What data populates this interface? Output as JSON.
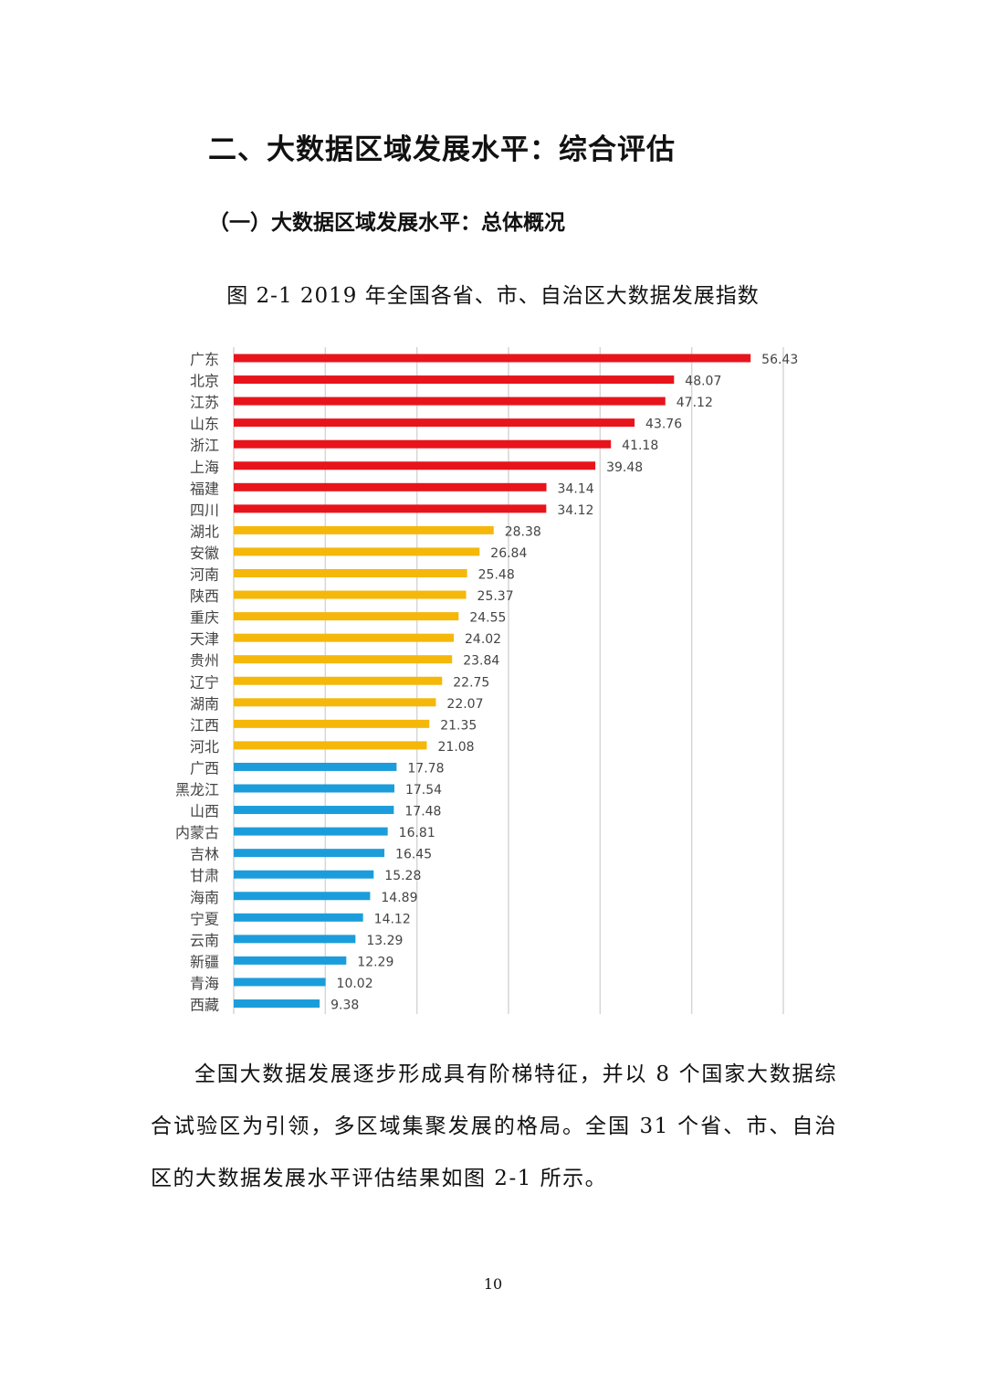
{
  "heading": "二、大数据区域发展水平：综合评估",
  "subheading": "（一）大数据区域发展水平：总体概况",
  "caption": "图 2-1 2019 年全国各省、市、自治区大数据发展指数",
  "paragraph": "全国大数据发展逐步形成具有阶梯特征，并以 8 个国家大数据综合试验区为引领，多区域集聚发展的格局。全国 31 个省、市、自治区的大数据发展水平评估结果如图 2-1 所示。",
  "page_number": "10",
  "chart_data": {
    "type": "bar",
    "orientation": "horizontal",
    "title": "图 2-1 2019 年全国各省、市、自治区大数据发展指数",
    "xlabel": "",
    "ylabel": "",
    "xlim": [
      0,
      60
    ],
    "grid": true,
    "categories": [
      "广东",
      "北京",
      "江苏",
      "山东",
      "浙江",
      "上海",
      "福建",
      "四川",
      "湖北",
      "安徽",
      "河南",
      "陕西",
      "重庆",
      "天津",
      "贵州",
      "辽宁",
      "湖南",
      "江西",
      "河北",
      "广西",
      "黑龙江",
      "山西",
      "内蒙古",
      "吉林",
      "甘肃",
      "海南",
      "宁夏",
      "云南",
      "新疆",
      "青海",
      "西藏"
    ],
    "values": [
      56.43,
      48.07,
      47.12,
      43.76,
      41.18,
      39.48,
      34.14,
      34.12,
      28.38,
      26.84,
      25.48,
      25.37,
      24.55,
      24.02,
      23.84,
      22.75,
      22.07,
      21.35,
      21.08,
      17.78,
      17.54,
      17.48,
      16.81,
      16.45,
      15.28,
      14.89,
      14.12,
      13.29,
      12.29,
      10.02,
      9.38
    ],
    "tiers": [
      1,
      1,
      1,
      1,
      1,
      1,
      1,
      1,
      2,
      2,
      2,
      2,
      2,
      2,
      2,
      2,
      2,
      2,
      2,
      3,
      3,
      3,
      3,
      3,
      3,
      3,
      3,
      3,
      3,
      3,
      3
    ],
    "tier_colors": {
      "1": "#e8141c",
      "2": "#f5b70a",
      "3": "#1c9ddb"
    }
  }
}
